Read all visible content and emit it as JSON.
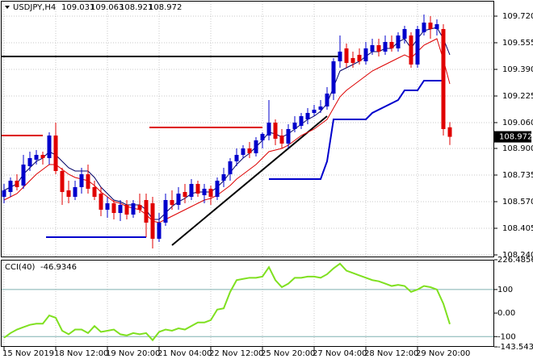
{
  "chart_data": {
    "type": "candlestick",
    "symbol": "USDJPY,H4",
    "categories": [
      "15 Nov 2019",
      null,
      null,
      null,
      null,
      null,
      null,
      null,
      "18 Nov 12:00",
      null,
      null,
      null,
      null,
      null,
      null,
      null,
      "19 Nov 20:00",
      null,
      null,
      null,
      null,
      null,
      null,
      null,
      "21 Nov 04:00",
      null,
      null,
      null,
      null,
      null,
      null,
      null,
      "22 Nov 12:00",
      null,
      null,
      null,
      null,
      null,
      null,
      null,
      "25 Nov 20:00",
      null,
      null,
      null,
      null,
      null,
      null,
      null,
      "27 Nov 04:00",
      null,
      null,
      null,
      null,
      null,
      null,
      null,
      "28 Nov 12:00",
      null,
      null,
      null,
      null,
      null,
      null,
      null,
      "29 Nov 20:00",
      null,
      null,
      null,
      null,
      null
    ],
    "open": [
      108.6,
      108.63,
      108.7,
      108.67,
      108.79,
      108.83,
      108.86,
      108.84,
      108.98,
      108.76,
      108.64,
      108.6,
      108.66,
      108.74,
      108.66,
      108.62,
      108.52,
      108.56,
      108.5,
      108.55,
      108.49,
      108.55,
      108.58,
      108.56,
      108.34,
      108.44,
      108.58,
      108.55,
      108.63,
      108.6,
      108.68,
      108.61,
      108.65,
      108.6,
      108.7,
      108.74,
      108.82,
      108.86,
      108.9,
      108.87,
      108.95,
      108.98,
      109.06,
      108.98,
      108.93,
      109.02,
      109.04,
      109.08,
      109.12,
      109.14,
      109.16,
      109.24,
      109.44,
      109.52,
      109.46,
      109.48,
      109.44,
      109.5,
      109.54,
      109.5,
      109.56,
      109.52,
      109.58,
      109.6,
      109.42,
      109.62,
      109.68,
      109.64,
      109.64,
      109.031
    ],
    "high": [
      108.68,
      108.72,
      108.74,
      108.86,
      108.88,
      108.89,
      108.88,
      109.0,
      109.06,
      108.78,
      108.7,
      108.7,
      108.78,
      108.8,
      108.7,
      108.66,
      108.6,
      108.58,
      108.58,
      108.58,
      108.58,
      108.62,
      108.62,
      108.6,
      108.5,
      108.62,
      108.64,
      108.66,
      108.68,
      108.71,
      108.7,
      108.68,
      108.67,
      108.72,
      108.78,
      108.84,
      108.9,
      108.92,
      108.94,
      108.97,
      109.0,
      109.2,
      109.08,
      109.02,
      109.05,
      109.1,
      109.12,
      109.15,
      109.17,
      109.2,
      109.28,
      109.46,
      109.6,
      109.55,
      109.5,
      109.52,
      109.56,
      109.58,
      109.58,
      109.6,
      109.6,
      109.62,
      109.66,
      109.62,
      109.66,
      109.73,
      109.72,
      109.7,
      109.67,
      109.063
    ],
    "low": [
      108.56,
      108.6,
      108.64,
      108.65,
      108.76,
      108.8,
      108.8,
      108.8,
      108.74,
      108.55,
      108.56,
      108.58,
      108.62,
      108.62,
      108.58,
      108.48,
      108.47,
      108.46,
      108.45,
      108.46,
      108.47,
      108.5,
      108.35,
      108.28,
      108.32,
      108.42,
      108.52,
      108.52,
      108.56,
      108.58,
      108.6,
      108.56,
      108.55,
      108.58,
      108.66,
      108.7,
      108.79,
      108.84,
      108.84,
      108.85,
      108.9,
      108.95,
      108.92,
      108.9,
      108.9,
      109.0,
      109.02,
      109.05,
      109.1,
      109.12,
      109.14,
      109.2,
      109.4,
      109.4,
      109.4,
      109.42,
      109.42,
      109.48,
      109.47,
      109.48,
      109.5,
      109.5,
      109.55,
      109.4,
      109.4,
      109.6,
      109.58,
      109.6,
      108.98,
      108.921
    ],
    "close": [
      108.64,
      108.7,
      108.66,
      108.8,
      108.84,
      108.86,
      108.84,
      108.98,
      108.76,
      108.63,
      108.6,
      108.66,
      108.74,
      108.65,
      108.6,
      108.52,
      108.56,
      108.5,
      108.55,
      108.49,
      108.56,
      108.52,
      108.44,
      108.34,
      108.44,
      108.58,
      108.55,
      108.62,
      108.6,
      108.68,
      108.62,
      108.65,
      108.6,
      108.7,
      108.74,
      108.82,
      108.86,
      108.9,
      108.87,
      108.95,
      108.99,
      109.06,
      108.96,
      108.93,
      109.02,
      109.06,
      109.1,
      109.12,
      109.14,
      109.16,
      109.24,
      109.44,
      109.5,
      109.43,
      109.43,
      109.44,
      109.52,
      109.54,
      109.5,
      109.56,
      109.52,
      109.6,
      109.64,
      109.42,
      109.64,
      109.68,
      109.64,
      109.67,
      109.02,
      108.972
    ],
    "up_color": "#0000cc",
    "down_color": "#e00000",
    "ma": [
      {
        "color": "#dd0000",
        "values": [
          108.58,
          108.6,
          108.62,
          108.66,
          108.7,
          108.74,
          108.77,
          108.8,
          108.8,
          108.77,
          108.74,
          108.72,
          108.71,
          108.7,
          108.67,
          108.63,
          108.6,
          108.57,
          108.56,
          108.54,
          108.53,
          108.52,
          108.49,
          108.45,
          108.44,
          108.46,
          108.48,
          108.5,
          108.52,
          108.54,
          108.56,
          108.58,
          108.59,
          108.61,
          108.64,
          108.67,
          108.71,
          108.74,
          108.77,
          108.8,
          108.84,
          108.88,
          108.89,
          108.9,
          108.92,
          108.95,
          108.98,
          109.0,
          109.02,
          109.05,
          109.08,
          109.15,
          109.22,
          109.26,
          109.29,
          109.32,
          109.35,
          109.38,
          109.4,
          109.42,
          109.44,
          109.46,
          109.48,
          109.46,
          109.5,
          109.54,
          109.56,
          109.58,
          109.45,
          109.3
        ]
      },
      {
        "color": "#000066",
        "values": [
          108.64,
          108.66,
          108.68,
          108.74,
          108.78,
          108.82,
          108.84,
          108.88,
          108.86,
          108.82,
          108.78,
          108.76,
          108.76,
          108.76,
          108.72,
          108.66,
          108.62,
          108.58,
          108.57,
          108.55,
          108.55,
          108.55,
          108.52,
          108.46,
          108.46,
          108.5,
          108.54,
          108.57,
          108.59,
          108.62,
          108.63,
          108.63,
          108.63,
          108.66,
          108.7,
          108.75,
          108.8,
          108.84,
          108.87,
          108.91,
          108.95,
          109.0,
          108.99,
          108.97,
          108.99,
          109.02,
          109.05,
          109.08,
          109.1,
          109.13,
          109.18,
          109.28,
          109.38,
          109.4,
          109.42,
          109.44,
          109.47,
          109.5,
          109.5,
          109.52,
          109.52,
          109.56,
          109.58,
          109.52,
          109.58,
          109.63,
          109.64,
          109.65,
          109.58,
          109.48
        ]
      }
    ],
    "hlines": [
      {
        "price": 109.47,
        "from": 0,
        "to": 52,
        "color": "#000000"
      },
      {
        "price": 108.98,
        "from": 0,
        "to": 6,
        "color": "#dd0000"
      },
      {
        "price": 109.03,
        "from": 23,
        "to": 40,
        "color": "#dd0000"
      },
      {
        "price": 108.35,
        "from": 7,
        "to": 22,
        "color": "#0000cc"
      }
    ],
    "trendline": {
      "color": "#000000",
      "points": [
        [
          26,
          108.3
        ],
        [
          50,
          109.1
        ]
      ]
    },
    "stepline": {
      "color": "#0000cc",
      "points": [
        [
          41,
          108.71
        ],
        [
          49,
          108.71
        ],
        [
          50,
          108.82
        ],
        [
          51,
          109.08
        ],
        [
          56,
          109.08
        ],
        [
          57,
          109.12
        ],
        [
          61,
          109.2
        ],
        [
          62,
          109.26
        ],
        [
          64,
          109.26
        ],
        [
          65,
          109.32
        ],
        [
          68,
          109.32
        ]
      ]
    },
    "ylim": [
      108.23,
      109.81
    ],
    "yticks": [
      {
        "value": 109.72,
        "label": "109.720"
      },
      {
        "value": 109.555,
        "label": "109.555"
      },
      {
        "value": 109.39,
        "label": "109.390"
      },
      {
        "value": 109.225,
        "label": "109.225"
      },
      {
        "value": 109.06,
        "label": "109.060"
      },
      {
        "value": 108.9,
        "label": "108.900"
      },
      {
        "value": 108.735,
        "label": "108.735"
      },
      {
        "value": 108.57,
        "label": "108.570"
      },
      {
        "value": 108.405,
        "label": "108.405"
      },
      {
        "value": 108.24,
        "label": "108.240"
      }
    ],
    "grid": true,
    "cci": {
      "name": "CCI(40)",
      "color": "#7fe020",
      "values": [
        -105,
        -85,
        -70,
        -60,
        -50,
        -45,
        -45,
        -10,
        -20,
        -75,
        -90,
        -70,
        -70,
        -85,
        -55,
        -80,
        -75,
        -70,
        -90,
        -95,
        -85,
        -90,
        -85,
        -115,
        -80,
        -70,
        -75,
        -65,
        -70,
        -55,
        -40,
        -40,
        -30,
        15,
        20,
        90,
        140,
        145,
        150,
        150,
        155,
        195,
        140,
        110,
        125,
        150,
        150,
        155,
        155,
        150,
        165,
        190,
        210,
        180,
        170,
        160,
        150,
        140,
        135,
        125,
        115,
        120,
        115,
        90,
        100,
        115,
        110,
        100,
        40,
        -46.9346
      ],
      "ylim": [
        -143.5433,
        226.4856
      ],
      "yticks": [
        226.4856,
        100,
        {
          "value": 0,
          "label": "0.00"
        },
        -100,
        -143.5433
      ],
      "levels": [
        100,
        -100
      ],
      "level_color": "#7fb0b0"
    }
  }
}
